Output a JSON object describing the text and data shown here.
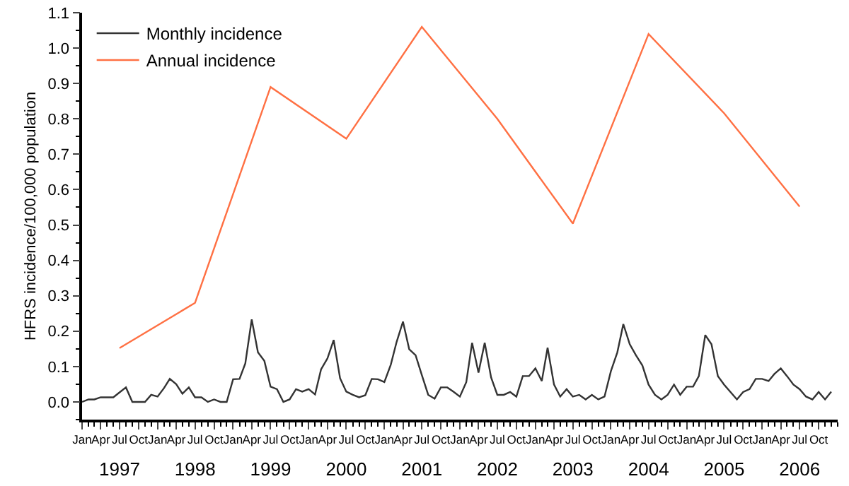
{
  "chart_data": {
    "type": "line",
    "ylabel": "HFRS incidence/100,000 population",
    "xlim": [
      "1997-01",
      "2007-01"
    ],
    "ylim": [
      -0.05,
      1.1
    ],
    "yticks": [
      {
        "value": 0,
        "label": "0.0"
      },
      {
        "value": 0.1,
        "label": "0.1"
      },
      {
        "value": 0.2,
        "label": "0.2"
      },
      {
        "value": 0.3,
        "label": "0.3"
      },
      {
        "value": 0.4,
        "label": "0.4"
      },
      {
        "value": 0.5,
        "label": "0.5"
      },
      {
        "value": 0.6,
        "label": "0.6"
      },
      {
        "value": 0.7,
        "label": "0.7"
      },
      {
        "value": 0.8,
        "label": "0.8"
      },
      {
        "value": 0.9,
        "label": "0.9"
      },
      {
        "value": 1.0,
        "label": "1.0"
      },
      {
        "value": 1.1,
        "label": "1.1"
      }
    ],
    "xticks": [
      {
        "value": "1997-01",
        "label": "Jan"
      },
      {
        "value": "1997-04",
        "label": "Apr"
      },
      {
        "value": "1997-07",
        "label": "Jul"
      },
      {
        "value": "1997-10",
        "label": "Oct"
      },
      {
        "value": "1998-01",
        "label": "Jan"
      },
      {
        "value": "1998-04",
        "label": "Apr"
      },
      {
        "value": "1998-07",
        "label": "Jul"
      },
      {
        "value": "1998-10",
        "label": "Oct"
      },
      {
        "value": "1999-01",
        "label": "Jan"
      },
      {
        "value": "1999-04",
        "label": "Apr"
      },
      {
        "value": "1999-07",
        "label": "Jul"
      },
      {
        "value": "1999-10",
        "label": "Oct"
      },
      {
        "value": "2000-01",
        "label": "Jan"
      },
      {
        "value": "2000-04",
        "label": "Apr"
      },
      {
        "value": "2000-07",
        "label": "Jul"
      },
      {
        "value": "2000-10",
        "label": "Oct"
      },
      {
        "value": "2001-01",
        "label": "Jan"
      },
      {
        "value": "2001-04",
        "label": "Apr"
      },
      {
        "value": "2001-07",
        "label": "Jul"
      },
      {
        "value": "2001-10",
        "label": "Oct"
      },
      {
        "value": "2002-01",
        "label": "Jan"
      },
      {
        "value": "2002-04",
        "label": "Apr"
      },
      {
        "value": "2002-07",
        "label": "Jul"
      },
      {
        "value": "2002-10",
        "label": "Oct"
      },
      {
        "value": "2003-01",
        "label": "Jan"
      },
      {
        "value": "2003-04",
        "label": "Apr"
      },
      {
        "value": "2003-07",
        "label": "Jul"
      },
      {
        "value": "2003-10",
        "label": "Oct"
      },
      {
        "value": "2004-01",
        "label": "Jan"
      },
      {
        "value": "2004-04",
        "label": "Apr"
      },
      {
        "value": "2004-07",
        "label": "Jul"
      },
      {
        "value": "2004-10",
        "label": "Oct"
      },
      {
        "value": "2005-01",
        "label": "Jan"
      },
      {
        "value": "2005-04",
        "label": "Apr"
      },
      {
        "value": "2005-07",
        "label": "Jul"
      },
      {
        "value": "2005-10",
        "label": "Oct"
      },
      {
        "value": "2006-01",
        "label": "Jan"
      },
      {
        "value": "2006-04",
        "label": "Apr"
      },
      {
        "value": "2006-07",
        "label": "Jul"
      },
      {
        "value": "2006-10",
        "label": "Oct"
      }
    ],
    "x2lim": [
      "1997-01",
      "2007-01"
    ],
    "x2ticks": [
      {
        "value": "1997-07",
        "label": "1997"
      },
      {
        "value": "1998-07",
        "label": "1998"
      },
      {
        "value": "1999-07",
        "label": "1999"
      },
      {
        "value": "2000-07",
        "label": "2000"
      },
      {
        "value": "2001-07",
        "label": "2001"
      },
      {
        "value": "2002-07",
        "label": "2002"
      },
      {
        "value": "2003-07",
        "label": "2003"
      },
      {
        "value": "2004-07",
        "label": "2004"
      },
      {
        "value": "2005-07",
        "label": "2005"
      },
      {
        "value": "2006-07",
        "label": "2006"
      }
    ],
    "x": [
      "1997-01",
      "1997-02",
      "1997-03",
      "1997-04",
      "1997-05",
      "1997-06",
      "1997-07",
      "1997-08",
      "1997-09",
      "1997-10",
      "1997-11",
      "1997-12",
      "1998-01",
      "1998-02",
      "1998-03",
      "1998-04",
      "1998-05",
      "1998-06",
      "1998-07",
      "1998-08",
      "1998-09",
      "1998-10",
      "1998-11",
      "1998-12",
      "1999-01",
      "1999-02",
      "1999-03",
      "1999-04",
      "1999-05",
      "1999-06",
      "1999-07",
      "1999-08",
      "1999-09",
      "1999-10",
      "1999-11",
      "1999-12",
      "2000-01",
      "2000-02",
      "2000-03",
      "2000-04",
      "2000-05",
      "2000-06",
      "2000-07",
      "2000-08",
      "2000-09",
      "2000-10",
      "2000-11",
      "2000-12",
      "2001-01",
      "2001-02",
      "2001-03",
      "2001-04",
      "2001-05",
      "2001-06",
      "2001-07",
      "2001-08",
      "2001-09",
      "2001-10",
      "2001-11",
      "2001-12",
      "2002-01",
      "2002-02",
      "2002-03",
      "2002-04",
      "2002-05",
      "2002-06",
      "2002-07",
      "2002-08",
      "2002-09",
      "2002-10",
      "2002-11",
      "2002-12",
      "2003-01",
      "2003-02",
      "2003-03",
      "2003-04",
      "2003-05",
      "2003-06",
      "2003-07",
      "2003-08",
      "2003-09",
      "2003-10",
      "2003-11",
      "2003-12",
      "2004-01",
      "2004-02",
      "2004-03",
      "2004-04",
      "2004-05",
      "2004-06",
      "2004-07",
      "2004-08",
      "2004-09",
      "2004-10",
      "2004-11",
      "2004-12",
      "2005-01",
      "2005-02",
      "2005-03",
      "2005-04",
      "2005-05",
      "2005-06",
      "2005-07",
      "2005-08",
      "2005-09",
      "2005-10",
      "2005-11",
      "2005-12",
      "2006-01",
      "2006-02",
      "2006-03",
      "2006-04",
      "2006-05",
      "2006-06",
      "2006-07",
      "2006-08",
      "2006-09",
      "2006-10",
      "2006-11",
      "2006-12"
    ],
    "legend": "top left",
    "marker": "none",
    "line_style": "solid",
    "series": [
      {
        "name": "Monthly incidence",
        "color": "#333333",
        "values": [
          0.0,
          0.007,
          0.007,
          0.013,
          0.013,
          0.013,
          0.027,
          0.041,
          0.0,
          0.0,
          0.0,
          0.02,
          0.015,
          0.039,
          0.065,
          0.05,
          0.023,
          0.041,
          0.013,
          0.013,
          0.0,
          0.007,
          0.0,
          0.0,
          0.064,
          0.065,
          0.109,
          0.233,
          0.14,
          0.116,
          0.043,
          0.036,
          0.0,
          0.007,
          0.036,
          0.029,
          0.036,
          0.021,
          0.092,
          0.123,
          0.175,
          0.067,
          0.029,
          0.02,
          0.013,
          0.019,
          0.065,
          0.064,
          0.056,
          0.105,
          0.169,
          0.227,
          0.149,
          0.132,
          0.076,
          0.02,
          0.009,
          0.041,
          0.041,
          0.029,
          0.015,
          0.056,
          0.167,
          0.083,
          0.167,
          0.069,
          0.02,
          0.02,
          0.028,
          0.015,
          0.073,
          0.073,
          0.095,
          0.059,
          0.153,
          0.049,
          0.015,
          0.036,
          0.015,
          0.02,
          0.007,
          0.02,
          0.007,
          0.015,
          0.087,
          0.14,
          0.22,
          0.163,
          0.132,
          0.103,
          0.049,
          0.02,
          0.007,
          0.02,
          0.049,
          0.02,
          0.043,
          0.043,
          0.073,
          0.189,
          0.163,
          0.073,
          0.049,
          0.028,
          0.007,
          0.028,
          0.036,
          0.065,
          0.065,
          0.059,
          0.079,
          0.095,
          0.073,
          0.049,
          0.036,
          0.015,
          0.007,
          0.028,
          0.007,
          0.029
        ]
      },
      {
        "name": "Annual incidence",
        "color": "#ff7043",
        "x": [
          "1997-07",
          "1998-07",
          "1999-07",
          "2000-07",
          "2001-07",
          "2002-07",
          "2003-07",
          "2004-07",
          "2005-07",
          "2006-07"
        ],
        "values": [
          0.152,
          0.28,
          0.89,
          0.744,
          1.06,
          0.8,
          0.504,
          1.04,
          0.816,
          0.552
        ]
      }
    ]
  }
}
